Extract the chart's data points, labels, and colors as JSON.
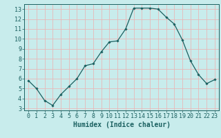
{
  "x": [
    0,
    1,
    2,
    3,
    4,
    5,
    6,
    7,
    8,
    9,
    10,
    11,
    12,
    13,
    14,
    15,
    16,
    17,
    18,
    19,
    20,
    21,
    22,
    23
  ],
  "y": [
    5.8,
    5.0,
    3.8,
    3.3,
    4.4,
    5.2,
    6.0,
    7.3,
    7.5,
    8.7,
    9.7,
    9.8,
    11.0,
    13.1,
    13.1,
    13.1,
    13.0,
    12.2,
    11.5,
    9.9,
    7.8,
    6.4,
    5.5,
    5.9
  ],
  "line_color": "#1a6060",
  "marker": "D",
  "marker_size": 1.8,
  "bg_color": "#c8ecec",
  "grid_color": "#e8b8b8",
  "xlabel": "Humidex (Indice chaleur)",
  "xlabel_fontsize": 7,
  "tick_fontsize": 6,
  "xlim": [
    -0.5,
    23.5
  ],
  "ylim": [
    2.8,
    13.5
  ],
  "yticks": [
    3,
    4,
    5,
    6,
    7,
    8,
    9,
    10,
    11,
    12,
    13
  ],
  "xticks": [
    0,
    1,
    2,
    3,
    4,
    5,
    6,
    7,
    8,
    9,
    10,
    11,
    12,
    13,
    14,
    15,
    16,
    17,
    18,
    19,
    20,
    21,
    22,
    23
  ]
}
